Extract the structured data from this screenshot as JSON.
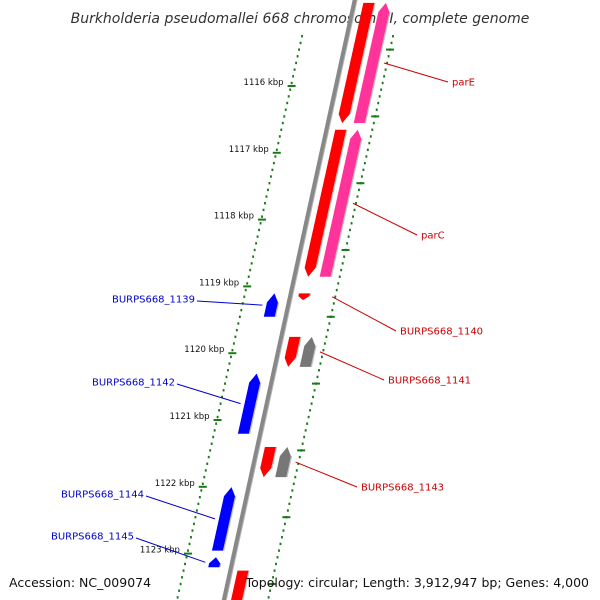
{
  "title": "Burkholderia pseudomallei 668 chromosome I, complete genome",
  "footer": {
    "accession": "Accession: NC_009074",
    "summary": "Topology: circular; Length: 3,912,947 bp; Genes: 4,000"
  },
  "colors": {
    "backbone": "#888888",
    "tick": "#1a7a1a",
    "forward_gene": "#ff0000",
    "forward_cds": "#ff3399",
    "reverse_gene": "#0000ff",
    "pseudo_cds": "#777777",
    "forward_label": "#cc0000",
    "reverse_label": "#0000cc"
  },
  "ticks": [
    {
      "kbp": 1116,
      "label": "1116 kbp"
    },
    {
      "kbp": 1117,
      "label": "1117 kbp"
    },
    {
      "kbp": 1118,
      "label": "1118 kbp"
    },
    {
      "kbp": 1119,
      "label": "1119 kbp"
    },
    {
      "kbp": 1120,
      "label": "1120 kbp"
    },
    {
      "kbp": 1121,
      "label": "1121 kbp"
    },
    {
      "kbp": 1122,
      "label": "1122 kbp"
    },
    {
      "kbp": 1123,
      "label": "1123 kbp"
    }
  ],
  "genes": [
    {
      "name": "parE",
      "strand": "+",
      "start_kbp": 1114.8,
      "end_kbp": 1116.6,
      "pair": true,
      "pair_type": "cds"
    },
    {
      "name": "parC",
      "strand": "+",
      "start_kbp": 1116.7,
      "end_kbp": 1118.9,
      "pair": true,
      "pair_type": "cds"
    },
    {
      "name": "BURPS668_1140",
      "strand": "+",
      "start_kbp": 1119.15,
      "end_kbp": 1119.25,
      "pair": false
    },
    {
      "name": "BURPS668_1141",
      "strand": "+",
      "start_kbp": 1119.8,
      "end_kbp": 1120.25,
      "pair": true,
      "pair_type": "pseudo"
    },
    {
      "name": "BURPS668_1143",
      "strand": "+",
      "start_kbp": 1121.45,
      "end_kbp": 1121.9,
      "pair": true,
      "pair_type": "pseudo"
    },
    {
      "name": "BURPS668_1139",
      "strand": "-",
      "start_kbp": 1119.15,
      "end_kbp": 1119.5,
      "pair": false
    },
    {
      "name": "BURPS668_1142",
      "strand": "-",
      "start_kbp": 1120.35,
      "end_kbp": 1121.25,
      "pair": false
    },
    {
      "name": "BURPS668_1144",
      "strand": "-",
      "start_kbp": 1122.05,
      "end_kbp": 1123.0,
      "pair": false
    },
    {
      "name": "BURPS668_1145",
      "strand": "-",
      "start_kbp": 1123.1,
      "end_kbp": 1123.25,
      "pair": false
    },
    {
      "name": "",
      "strand": "+",
      "start_kbp": 1123.3,
      "end_kbp": 1124.0,
      "pair": false
    }
  ]
}
